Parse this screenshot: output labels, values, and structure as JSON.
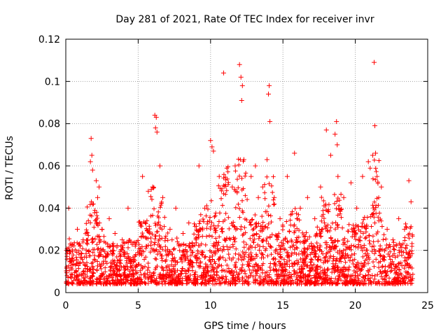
{
  "chart_data": {
    "type": "scatter",
    "title": "Day 281 of 2021, Rate Of TEC Index for receiver invr",
    "xlabel": "GPS time / hours",
    "ylabel": "ROTI / TECUs",
    "xlim": [
      0,
      25
    ],
    "ylim": [
      0,
      0.12
    ],
    "xticks": [
      0,
      5,
      10,
      15,
      20,
      25
    ],
    "yticks": [
      0,
      0.02,
      0.04,
      0.06,
      0.08,
      0.1,
      0.12
    ],
    "xtick_labels": [
      "0",
      "5",
      "10",
      "15",
      "20",
      "25"
    ],
    "ytick_labels": [
      "0",
      "0.02",
      "0.04",
      "0.06",
      "0.08",
      "0.1",
      "0.12"
    ],
    "grid": true,
    "marker": "+",
    "color": "#ff0000",
    "series": [
      {
        "name": "ROTI",
        "x": [
          0.05,
          0.2,
          0.4,
          0.8,
          1.2,
          1.7,
          1.75,
          1.8,
          1.85,
          2.1,
          2.2,
          2.3,
          2.5,
          3.0,
          3.4,
          3.9,
          4.3,
          4.8,
          5.3,
          5.7,
          6.0,
          6.15,
          6.2,
          6.25,
          6.3,
          6.5,
          6.7,
          7.2,
          7.6,
          8.1,
          8.5,
          9.0,
          9.2,
          9.6,
          10.0,
          10.1,
          10.2,
          10.6,
          10.9,
          11.5,
          11.7,
          12.0,
          12.1,
          12.15,
          12.2,
          12.3,
          12.8,
          13.1,
          13.3,
          13.6,
          13.9,
          14.0,
          14.05,
          14.1,
          14.4,
          14.8,
          15.3,
          15.8,
          16.2,
          16.7,
          17.2,
          17.6,
          18.0,
          18.3,
          18.6,
          18.7,
          18.75,
          18.8,
          19.2,
          19.7,
          20.1,
          20.5,
          20.9,
          21.2,
          21.3,
          21.35,
          21.4,
          21.5,
          21.8,
          22.2,
          22.6,
          23.0,
          23.4,
          23.7,
          23.85
        ],
        "y": [
          0.02,
          0.04,
          0.015,
          0.03,
          0.025,
          0.062,
          0.073,
          0.065,
          0.058,
          0.053,
          0.045,
          0.05,
          0.03,
          0.035,
          0.028,
          0.025,
          0.04,
          0.022,
          0.055,
          0.048,
          0.05,
          0.084,
          0.078,
          0.083,
          0.076,
          0.06,
          0.045,
          0.03,
          0.04,
          0.028,
          0.033,
          0.025,
          0.06,
          0.04,
          0.072,
          0.069,
          0.067,
          0.055,
          0.104,
          0.05,
          0.06,
          0.108,
          0.102,
          0.091,
          0.098,
          0.063,
          0.055,
          0.06,
          0.045,
          0.05,
          0.063,
          0.094,
          0.098,
          0.081,
          0.045,
          0.035,
          0.055,
          0.066,
          0.04,
          0.045,
          0.035,
          0.05,
          0.077,
          0.065,
          0.075,
          0.081,
          0.07,
          0.055,
          0.045,
          0.052,
          0.04,
          0.055,
          0.062,
          0.065,
          0.109,
          0.079,
          0.066,
          0.055,
          0.05,
          0.03,
          0.025,
          0.035,
          0.03,
          0.053,
          0.043
        ]
      }
    ]
  }
}
